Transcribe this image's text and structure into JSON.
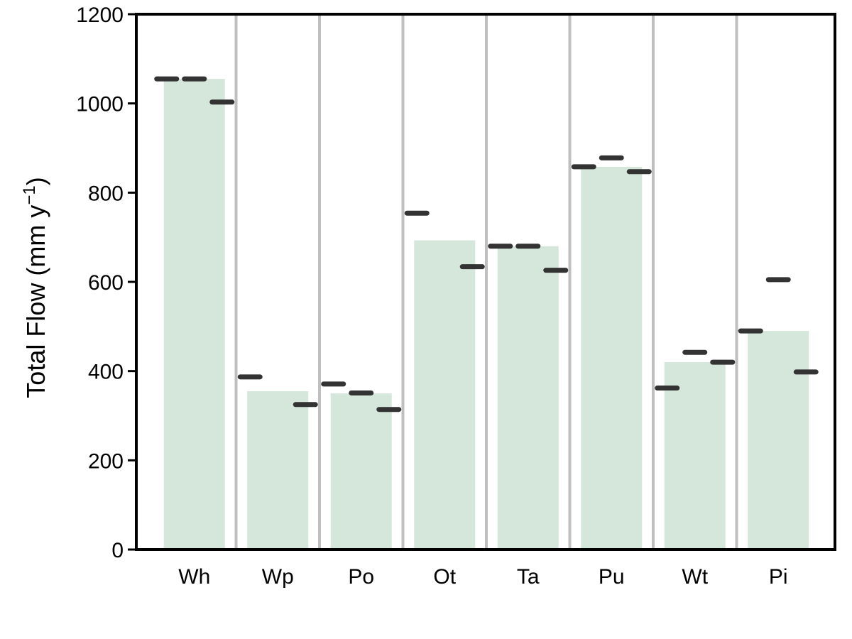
{
  "chart_data": {
    "type": "bar",
    "title": "",
    "xlabel": "",
    "ylabel": "Total Flow (mm y",
    "ylabel_superscript": "−1",
    "ylabel_close": ")",
    "categories": [
      "Wh",
      "Wp",
      "Po",
      "Ot",
      "Ta",
      "Pu",
      "Wt",
      "Pi"
    ],
    "values": [
      1055,
      355,
      350,
      693,
      680,
      858,
      420,
      490
    ],
    "markers": [
      [
        1055,
        1055,
        1003
      ],
      [
        387,
        null,
        325
      ],
      [
        371,
        351,
        314
      ],
      [
        754,
        null,
        634
      ],
      [
        680,
        680,
        626
      ],
      [
        858,
        878,
        847
      ],
      [
        362,
        442,
        420
      ],
      [
        490,
        605,
        398
      ]
    ],
    "ylim": [
      0,
      1200
    ],
    "yticks": [
      0,
      200,
      400,
      600,
      800,
      1000,
      1200
    ],
    "grid": false,
    "legend": "none",
    "colors": {
      "bar": "#d5e6db",
      "marker": "#333333",
      "separator": "#bfbfbf",
      "axis": "#000000"
    }
  }
}
